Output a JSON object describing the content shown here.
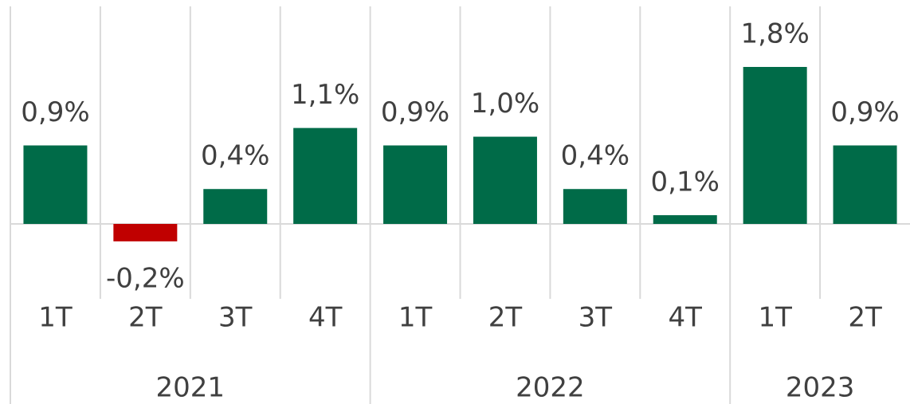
{
  "chart_data": {
    "type": "bar",
    "categories": [
      "1T",
      "2T",
      "3T",
      "4T",
      "1T",
      "2T",
      "3T",
      "4T",
      "1T",
      "2T"
    ],
    "groups": [
      {
        "label": "2021",
        "count": 4
      },
      {
        "label": "2022",
        "count": 4
      },
      {
        "label": "2023",
        "count": 2
      }
    ],
    "values": [
      0.9,
      -0.2,
      0.4,
      1.1,
      0.9,
      1.0,
      0.4,
      0.1,
      1.8,
      0.9
    ],
    "value_labels": [
      "0,9%",
      "-0,2%",
      "0,4%",
      "1,1%",
      "0,9%",
      "1,0%",
      "0,4%",
      "0,1%",
      "1,8%",
      "0,9%"
    ],
    "color": "#006b48",
    "negative_color": "#c00000"
  }
}
